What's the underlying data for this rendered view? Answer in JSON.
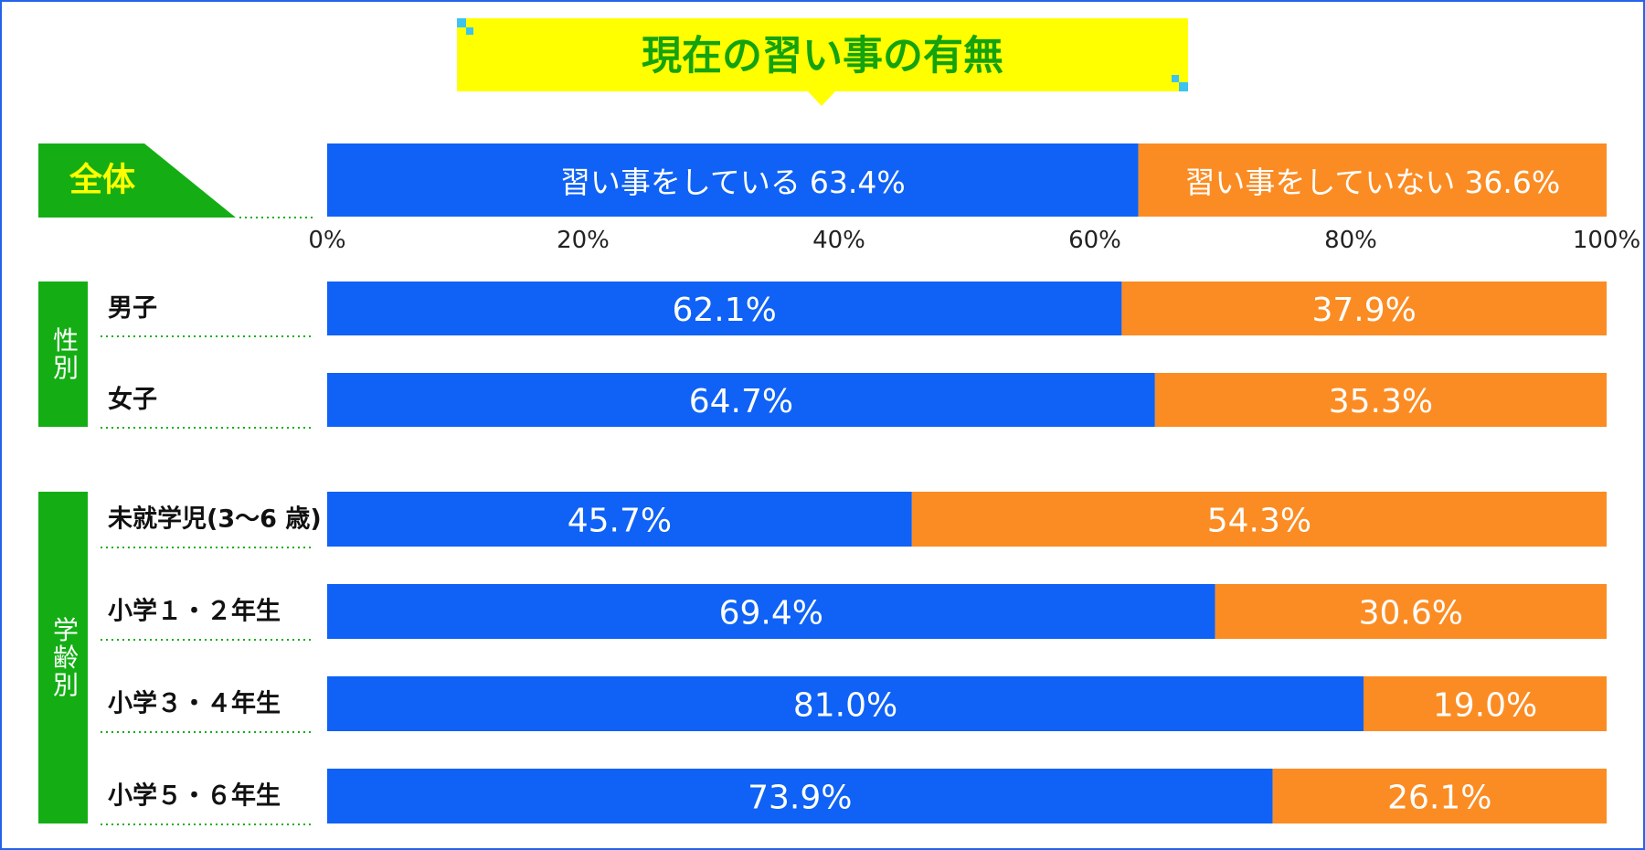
{
  "chart_data": {
    "type": "stacked-bar-horizontal",
    "title": "現在の習い事の有無",
    "overall_label": "全体",
    "categories": [
      "全体",
      "男子",
      "女子",
      "未就学児(3〜6 歳)",
      "小学１・２年生",
      "小学３・４年生",
      "小学５・６年生"
    ],
    "groups": [
      {
        "label": "性別",
        "members": [
          "男子",
          "女子"
        ]
      },
      {
        "label": "学齢別",
        "members": [
          "未就学児(3〜6 歳)",
          "小学１・２年生",
          "小学３・４年生",
          "小学５・６年生"
        ]
      }
    ],
    "series": [
      {
        "name": "習い事をしている",
        "color": "#0f62f5",
        "values": [
          63.4,
          62.1,
          64.7,
          45.7,
          69.4,
          81.0,
          73.9
        ],
        "value_labels": [
          "63.4%",
          "62.1%",
          "64.7%",
          "45.7%",
          "69.4%",
          "81.0%",
          "73.9%"
        ]
      },
      {
        "name": "習い事をしていない",
        "color": "#fb8c23",
        "values": [
          36.6,
          37.9,
          35.3,
          54.3,
          30.6,
          19.0,
          26.1
        ],
        "value_labels": [
          "36.6%",
          "37.9%",
          "35.3%",
          "54.3%",
          "30.6%",
          "19.0%",
          "26.1%"
        ]
      }
    ],
    "xlim": [
      0,
      100
    ],
    "xticks": [
      {
        "value": 0,
        "label": "0%"
      },
      {
        "value": 20,
        "label": "20%"
      },
      {
        "value": 40,
        "label": "40%"
      },
      {
        "value": 60,
        "label": "60%"
      },
      {
        "value": 80,
        "label": "80%"
      },
      {
        "value": 100,
        "label": "100%"
      }
    ]
  }
}
